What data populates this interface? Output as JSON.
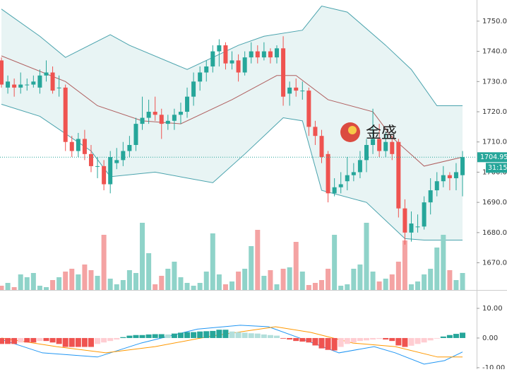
{
  "chart_data": {
    "type": "candlestick",
    "ylim": [
      1661,
      1757
    ],
    "yticks": [
      {
        "value": 1750,
        "label": "1750.00"
      },
      {
        "value": 1740,
        "label": "1740.00"
      },
      {
        "value": 1730,
        "label": "1730.00"
      },
      {
        "value": 1720,
        "label": "1720.00"
      },
      {
        "value": 1710,
        "label": "1710.00"
      },
      {
        "value": 1700,
        "label": "1700.00"
      },
      {
        "value": 1690,
        "label": "1690.00"
      },
      {
        "value": 1680,
        "label": "1680.00"
      },
      {
        "value": 1670,
        "label": "1670.00"
      }
    ],
    "up_color": "#26a69a",
    "down_color": "#ef5350",
    "open": [
      1737,
      1728,
      1729,
      1728,
      1729,
      1729,
      1728,
      1732,
      1733,
      1728,
      1728,
      1710,
      1707,
      1711,
      1706,
      1702,
      1702,
      1696,
      1703,
      1704,
      1707,
      1709,
      1716,
      1718,
      1720,
      1719,
      1716,
      1717,
      1719,
      1720,
      1725,
      1730,
      1733,
      1735,
      1740,
      1742,
      1736,
      1737,
      1733,
      1738,
      1740,
      1738,
      1740,
      1738,
      1741,
      1726,
      1728,
      1727,
      1727,
      1715,
      1712,
      1706,
      1693,
      1695,
      1697,
      1699,
      1700,
      1704,
      1709,
      1711,
      1707,
      1710,
      1710,
      1688,
      1680,
      1682,
      1682,
      1690,
      1694,
      1697,
      1699,
      1698,
      1699
    ],
    "close": [
      1729,
      1730,
      1728,
      1729,
      1729,
      1730,
      1732,
      1733,
      1727,
      1728,
      1710,
      1707,
      1711,
      1706,
      1702,
      1702,
      1696,
      1705,
      1704,
      1707,
      1709,
      1716,
      1718,
      1720,
      1719,
      1716,
      1717,
      1719,
      1720,
      1725,
      1730,
      1733,
      1735,
      1740,
      1742,
      1736,
      1737,
      1733,
      1738,
      1740,
      1738,
      1740,
      1738,
      1741,
      1725,
      1728,
      1727,
      1727,
      1715,
      1712,
      1705,
      1693,
      1695,
      1696,
      1699,
      1700,
      1704,
      1709,
      1711,
      1707,
      1710,
      1706,
      1688,
      1680,
      1683,
      1682,
      1690,
      1694,
      1697,
      1699,
      1698,
      1700,
      1705
    ],
    "high": [
      1738,
      1732,
      1731,
      1733,
      1731,
      1732,
      1734,
      1737,
      1735,
      1732,
      1729,
      1712,
      1713,
      1714,
      1709,
      1705,
      1704,
      1707,
      1708,
      1710,
      1712,
      1718,
      1725,
      1724,
      1725,
      1721,
      1719,
      1721,
      1723,
      1728,
      1733,
      1735,
      1737,
      1742,
      1744,
      1743,
      1740,
      1739,
      1740,
      1743,
      1742,
      1743,
      1741,
      1742,
      1745,
      1730,
      1731,
      1730,
      1728,
      1717,
      1714,
      1707,
      1698,
      1700,
      1705,
      1703,
      1707,
      1711,
      1721,
      1716,
      1713,
      1712,
      1711,
      1691,
      1687,
      1686,
      1692,
      1698,
      1700,
      1702,
      1700,
      1703,
      1707
    ],
    "low": [
      1728,
      1726,
      1725,
      1726,
      1727,
      1728,
      1726,
      1730,
      1726,
      1725,
      1707,
      1705,
      1705,
      1704,
      1700,
      1698,
      1694,
      1693,
      1701,
      1702,
      1705,
      1707,
      1714,
      1716,
      1717,
      1711,
      1714,
      1714,
      1716,
      1718,
      1722,
      1727,
      1730,
      1733,
      1735,
      1734,
      1734,
      1730,
      1732,
      1736,
      1736,
      1737,
      1736,
      1736,
      1722,
      1722,
      1725,
      1724,
      1712,
      1709,
      1703,
      1690,
      1692,
      1693,
      1694,
      1697,
      1698,
      1700,
      1706,
      1705,
      1705,
      1704,
      1685,
      1676,
      1677,
      1680,
      1681,
      1686,
      1692,
      1695,
      1694,
      1694,
      1692
    ],
    "volume": [
      6,
      10,
      4,
      22,
      18,
      24,
      6,
      4,
      14,
      18,
      26,
      30,
      22,
      36,
      28,
      20,
      78,
      16,
      8,
      14,
      28,
      24,
      95,
      52,
      8,
      20,
      30,
      40,
      18,
      10,
      6,
      10,
      26,
      80,
      22,
      8,
      12,
      26,
      30,
      62,
      85,
      20,
      28,
      8,
      30,
      32,
      68,
      26,
      7,
      10,
      14,
      30,
      78,
      6,
      8,
      30,
      36,
      95,
      26,
      12,
      16,
      22,
      40,
      70,
      8,
      12,
      22,
      30,
      60,
      78,
      28,
      14,
      24
    ],
    "volume_up_color": "#8fd3c9",
    "volume_down_color": "#f4a3a3",
    "bands": {
      "fill": "#e8f4f4",
      "upper": {
        "color": "#4aa3ad",
        "x": [
          0,
          6,
          10,
          17,
          20,
          29,
          33,
          37,
          41,
          47,
          50,
          54,
          60,
          64,
          68,
          72
        ],
        "values": [
          1754,
          1745,
          1738,
          1745.5,
          1742,
          1734,
          1738,
          1742,
          1745,
          1747,
          1755,
          1753,
          1742,
          1734,
          1722,
          1722
        ]
      },
      "middle": {
        "color": "#b06060",
        "x": [
          0,
          10,
          15,
          22,
          28,
          36,
          43,
          46,
          51,
          58,
          61,
          66,
          72
        ],
        "values": [
          1738.5,
          1730,
          1722,
          1717,
          1716,
          1724,
          1732,
          1732,
          1724,
          1720,
          1711.5,
          1702,
          1705
        ]
      },
      "lower": {
        "color": "#4aa3ad",
        "x": [
          0,
          6,
          14,
          17,
          24,
          33,
          38,
          44,
          47,
          50,
          57,
          63,
          66,
          72
        ],
        "values": [
          1722.5,
          1718.5,
          1707,
          1698.5,
          1700,
          1696.5,
          1706,
          1718,
          1717,
          1694,
          1690,
          1678,
          1677.5,
          1677.5
        ]
      }
    },
    "last_price": {
      "value": 1704.95,
      "label": "1704.95"
    },
    "countdown": "31:15",
    "watermark": "金盛",
    "macd": {
      "ylim": [
        -10.5,
        16.2
      ],
      "yticks": [
        {
          "value": 10,
          "label": "10.00"
        },
        {
          "value": 0,
          "label": "0.00"
        },
        {
          "value": -10,
          "label": "-10.00"
        }
      ],
      "histogram": [
        -2,
        -2,
        -2,
        -1.5,
        -1.5,
        -1.5,
        -1,
        -1,
        -1.5,
        -2,
        -3,
        -3,
        -3,
        -3,
        -3,
        -2,
        -1.5,
        -1,
        -0.5,
        0.3,
        0.8,
        1,
        1,
        1.2,
        1.3,
        1.3,
        1.2,
        1.5,
        1.8,
        2,
        2,
        2.2,
        2.3,
        2.4,
        2.8,
        2.8,
        2.2,
        2,
        1.8,
        1.6,
        1.5,
        1.2,
        1,
        0.8,
        -0.2,
        -0.5,
        -1,
        -1.2,
        -1.5,
        -2.5,
        -3.5,
        -4,
        -4.2,
        -3,
        -2,
        -1.5,
        -1,
        -0.8,
        -0.5,
        -0.3,
        -0.5,
        -1,
        -2.5,
        -3,
        -2.6,
        -2,
        -1.5,
        -0.8,
        -0.2,
        0.5,
        1,
        1.4,
        1.8
      ],
      "macd_line": {
        "color": "#2196f3",
        "x": [
          0,
          6.4,
          15,
          21.8,
          30.6,
          37.3,
          41.7,
          47.2,
          52.7,
          58.2,
          61.5,
          66,
          69.2,
          72
        ],
        "values": [
          -0.5,
          -5,
          -6.4,
          -1.7,
          3,
          4.3,
          3.8,
          -0.5,
          -5,
          -2.9,
          -5,
          -8.8,
          -7.6,
          -4.7
        ]
      },
      "signal_line": {
        "color": "#ff9800",
        "x": [
          0,
          8.6,
          16.3,
          24,
          32.9,
          42.8,
          48.3,
          54.9,
          61.5,
          68.1,
          72
        ],
        "values": [
          0,
          -2.9,
          -5,
          -2.9,
          0.7,
          3.8,
          1.9,
          -1.7,
          -2.9,
          -6.4,
          -6.4
        ]
      }
    }
  }
}
